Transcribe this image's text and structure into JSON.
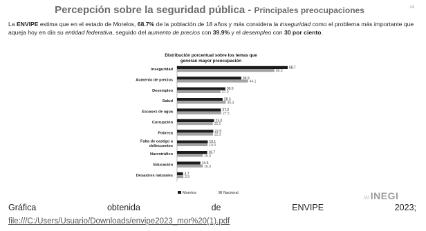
{
  "slide": {
    "title_main": "Percepción sobre la seguridad pública - ",
    "title_sub": "Principales preocupaciones",
    "page_number": "24",
    "intro": {
      "p1": "La ",
      "b1": "ENVIPE",
      "p2": " estima que en el estado de Morelos, ",
      "b2": "68.7%",
      "p3": " de la población de 18 años y más considera la ",
      "i1": "inseguridad",
      "p4": " como el problema más importante que aqueja hoy en día su ",
      "i2": "entidad federativa",
      "p5": ", seguido del ",
      "i3": "aumento de precios",
      "p6": " con ",
      "b3": "39.9%",
      "p7": " y el ",
      "i4": "desempleo",
      "p8": " con ",
      "b4": "30 por ciento",
      "p9": "."
    },
    "logo_text": "INEGI",
    "logo_mark": "//\\\\"
  },
  "caption": {
    "w1": "Gráfica",
    "w2": "obtenida",
    "w3": "de",
    "w4": "ENVIPE",
    "w5": "2023;"
  },
  "link": "file:///C:/Users/Usuario/Downloads/envipe2023_mor%20(1).pdf",
  "colors": {
    "morelos": "#1c1c1c",
    "nacional": "#a3a3a3",
    "title": "#6b6b6b"
  },
  "chart_data": {
    "type": "bar",
    "orientation": "horizontal",
    "title_line1": "Distribución porcentual sobre los temas que",
    "title_line2": "generan mayor preocupación",
    "categories": [
      "Inseguridad",
      "Aumento de precios",
      "Desempleo",
      "Salud",
      "Escasez de agua",
      "Corrupción",
      "Pobreza",
      "Falta de castigo a delincuentes",
      "Narcotráfico",
      "Educación",
      "Desastres naturales"
    ],
    "category_lines": [
      [
        "Inseguridad"
      ],
      [
        "Aumento de precios"
      ],
      [
        "Desempleo"
      ],
      [
        "Salud"
      ],
      [
        "Escasez de agua"
      ],
      [
        "Corrupción"
      ],
      [
        "Pobreza"
      ],
      [
        "Falta de castigo a",
        "delincuentes"
      ],
      [
        "Narcotráfico"
      ],
      [
        "Educación"
      ],
      [
        "Desastres naturales"
      ]
    ],
    "series": [
      {
        "name": "Morelos",
        "values": [
          68.7,
          39.9,
          30.0,
          28.3,
          27.2,
          23.0,
          22.5,
          19.1,
          18.7,
          14.5,
          3.7
        ]
      },
      {
        "name": "Nacional",
        "values": [
          60.5,
          44.1,
          27.0,
          30.3,
          27.5,
          22.2,
          22.3,
          19.0,
          16.0,
          16.0,
          3.9
        ]
      }
    ],
    "xlim": [
      0,
      70
    ],
    "legend_position": "bottom"
  }
}
